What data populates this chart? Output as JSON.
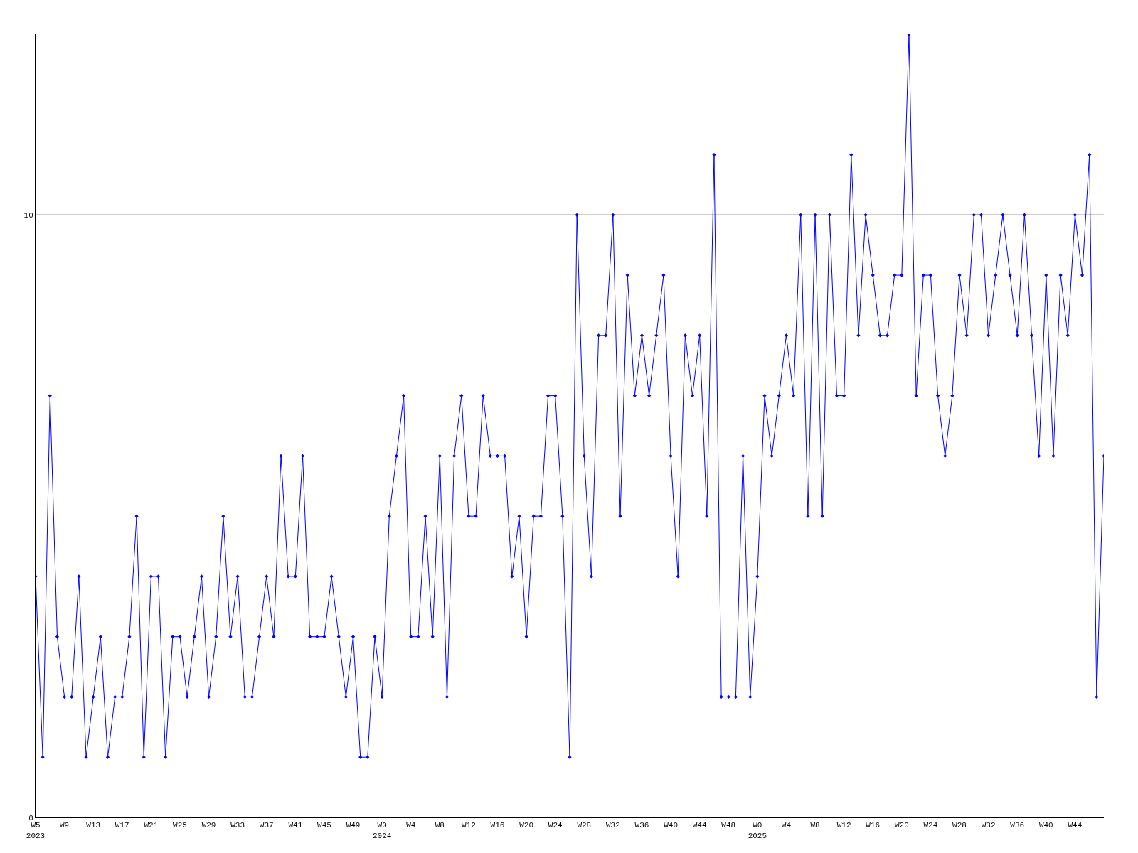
{
  "chart_data": {
    "type": "line",
    "categories": [
      "W5\n2023",
      null,
      null,
      null,
      "W9",
      null,
      null,
      null,
      "W13",
      null,
      null,
      null,
      "W17",
      null,
      null,
      null,
      "W21",
      null,
      null,
      null,
      "W25",
      null,
      null,
      null,
      "W29",
      null,
      null,
      null,
      "W33",
      null,
      null,
      null,
      "W37",
      null,
      null,
      null,
      "W41",
      null,
      null,
      null,
      "W45",
      null,
      null,
      null,
      "W49",
      null,
      null,
      null,
      "W0\n2024",
      null,
      null,
      null,
      "W4",
      null,
      null,
      null,
      "W8",
      null,
      null,
      null,
      "W12",
      null,
      null,
      null,
      "W16",
      null,
      null,
      null,
      "W20",
      null,
      null,
      null,
      "W24",
      null,
      null,
      null,
      "W28",
      null,
      null,
      null,
      "W32",
      null,
      null,
      null,
      "W36",
      null,
      null,
      null,
      "W40",
      null,
      null,
      null,
      "W44",
      null,
      null,
      null,
      "W48",
      null,
      null,
      null,
      "W0\n2025",
      null,
      null,
      null,
      "W4",
      null,
      null,
      null,
      "W8",
      null,
      null,
      null,
      "W12",
      null,
      null,
      null,
      "W16",
      null,
      null,
      null,
      "W20",
      null,
      null,
      null,
      "W24",
      null,
      null,
      null,
      "W28",
      null,
      null,
      null,
      "W32",
      null,
      null,
      null,
      "W36",
      null,
      null,
      null,
      "W40",
      null,
      null,
      null,
      "W44",
      null,
      null,
      null,
      null
    ],
    "series": [
      {
        "color": "#0000ff",
        "values": [
          4,
          1,
          7,
          3,
          2,
          2,
          4,
          1,
          2,
          3,
          1,
          2,
          2,
          3,
          5,
          1,
          4,
          4,
          1,
          3,
          3,
          2,
          3,
          4,
          2,
          3,
          5,
          3,
          4,
          2,
          2,
          3,
          4,
          3,
          6,
          4,
          4,
          6,
          3,
          3,
          3,
          4,
          3,
          2,
          3,
          1,
          1,
          3,
          2,
          5,
          6,
          7,
          3,
          3,
          5,
          3,
          6,
          2,
          6,
          7,
          5,
          5,
          7,
          6,
          6,
          6,
          4,
          5,
          3,
          5,
          5,
          7,
          7,
          5,
          1,
          10,
          6,
          4,
          8,
          8,
          10,
          5,
          9,
          7,
          8,
          7,
          8,
          9,
          6,
          4,
          8,
          7,
          8,
          5,
          11,
          2,
          2,
          2,
          6,
          2,
          4,
          7,
          6,
          7,
          8,
          7,
          10,
          5,
          10,
          5,
          10,
          7,
          7,
          11,
          8,
          10,
          9,
          8,
          8,
          9,
          9,
          13,
          7,
          9,
          9,
          7,
          6,
          7,
          9,
          8,
          10,
          10,
          8,
          9,
          10,
          9,
          8,
          10,
          8,
          6,
          9,
          6,
          9,
          8,
          10,
          9,
          11,
          2,
          6
        ]
      }
    ],
    "ylim": [
      0,
      13
    ],
    "yticks": [
      0,
      10
    ],
    "ref_lines": [
      {
        "axis": "y",
        "value": 10,
        "color": "#000000"
      }
    ],
    "legend": false,
    "marker": "diamond",
    "line_style": "solid"
  }
}
